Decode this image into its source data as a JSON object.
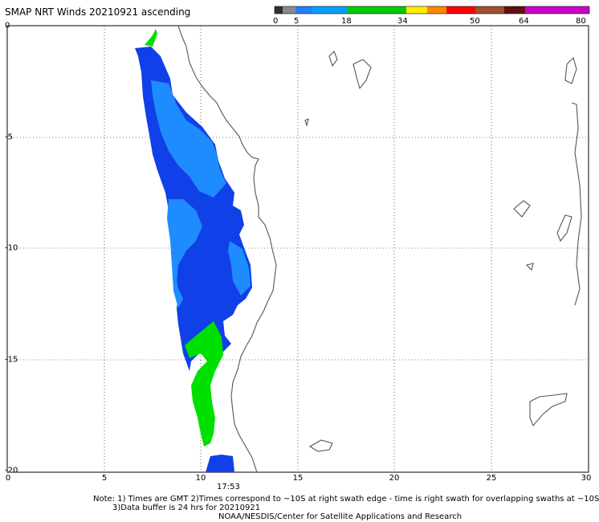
{
  "header": {
    "title": "SMAP NRT Winds 20210921 ascending"
  },
  "colorbar": {
    "labels": [
      "0",
      "5",
      "18",
      "34",
      "50",
      "64",
      "80"
    ],
    "colors": [
      "#303030",
      "#8a8a8a",
      "#00a0ff",
      "#00cc00",
      "#ffee00",
      "#ff8800",
      "#ff0000",
      "#a05030",
      "#601010",
      "#cc00cc"
    ]
  },
  "map": {
    "lon_ticks": [
      "0",
      "5",
      "10",
      "15",
      "20",
      "25",
      "30"
    ],
    "lat_ticks": [
      "0",
      "-5",
      "-10",
      "-15",
      "-20"
    ],
    "swath_time": "17:53"
  },
  "notes": {
    "line1": "Note: 1) Times are GMT 2)Times correspond to ~10S at right swath edge - time is right swath for overlapping swaths at ~10S",
    "line2": "3)Data buffer is 24 hrs for 20210921",
    "line3": "NOAA/NESDIS/Center for Satellite Applications and Research"
  }
}
